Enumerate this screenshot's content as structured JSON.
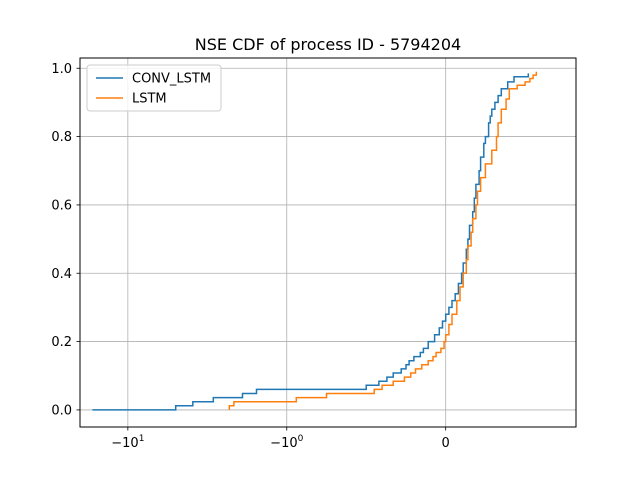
{
  "chart_data": {
    "type": "line",
    "title": "NSE CDF of process ID - 5794204",
    "xlabel": "",
    "ylabel": "",
    "x_scale": "symlog",
    "xlim": [
      -20,
      0.82
    ],
    "ylim": [
      -0.05,
      1.03
    ],
    "grid": true,
    "legend_position": "top-left",
    "x_ticks": [
      {
        "value": -10,
        "label": "-10",
        "exp": "1"
      },
      {
        "value": -1,
        "label": "-10",
        "exp": "0"
      },
      {
        "value": 0,
        "label": "0",
        "exp": ""
      }
    ],
    "y_ticks": [
      {
        "value": 0.0,
        "label": "0.0"
      },
      {
        "value": 0.2,
        "label": "0.2"
      },
      {
        "value": 0.4,
        "label": "0.4"
      },
      {
        "value": 0.6,
        "label": "0.6"
      },
      {
        "value": 0.8,
        "label": "0.8"
      },
      {
        "value": 1.0,
        "label": "1.0"
      }
    ],
    "series": [
      {
        "name": "CONV_LSTM",
        "color": "#1f77b4",
        "points": [
          [
            -16.7,
            0.0
          ],
          [
            -5.0,
            0.0
          ],
          [
            -5.0,
            0.012
          ],
          [
            -3.9,
            0.012
          ],
          [
            -3.9,
            0.024
          ],
          [
            -2.9,
            0.024
          ],
          [
            -2.9,
            0.036
          ],
          [
            -1.9,
            0.036
          ],
          [
            -1.9,
            0.048
          ],
          [
            -1.55,
            0.048
          ],
          [
            -1.55,
            0.06
          ],
          [
            -0.5,
            0.06
          ],
          [
            -0.5,
            0.072
          ],
          [
            -0.42,
            0.072
          ],
          [
            -0.42,
            0.084
          ],
          [
            -0.37,
            0.084
          ],
          [
            -0.37,
            0.096
          ],
          [
            -0.33,
            0.096
          ],
          [
            -0.33,
            0.108
          ],
          [
            -0.28,
            0.108
          ],
          [
            -0.28,
            0.12
          ],
          [
            -0.25,
            0.12
          ],
          [
            -0.25,
            0.132
          ],
          [
            -0.23,
            0.132
          ],
          [
            -0.23,
            0.144
          ],
          [
            -0.2,
            0.144
          ],
          [
            -0.2,
            0.156
          ],
          [
            -0.16,
            0.156
          ],
          [
            -0.16,
            0.168
          ],
          [
            -0.14,
            0.168
          ],
          [
            -0.14,
            0.18
          ],
          [
            -0.11,
            0.18
          ],
          [
            -0.11,
            0.2
          ],
          [
            -0.07,
            0.2
          ],
          [
            -0.07,
            0.22
          ],
          [
            -0.04,
            0.22
          ],
          [
            -0.04,
            0.24
          ],
          [
            -0.02,
            0.24
          ],
          [
            -0.02,
            0.26
          ],
          [
            0.0,
            0.26
          ],
          [
            0.0,
            0.28
          ],
          [
            0.02,
            0.28
          ],
          [
            0.02,
            0.3
          ],
          [
            0.04,
            0.3
          ],
          [
            0.04,
            0.32
          ],
          [
            0.06,
            0.32
          ],
          [
            0.06,
            0.34
          ],
          [
            0.08,
            0.34
          ],
          [
            0.08,
            0.37
          ],
          [
            0.1,
            0.37
          ],
          [
            0.1,
            0.4
          ],
          [
            0.11,
            0.4
          ],
          [
            0.11,
            0.43
          ],
          [
            0.13,
            0.43
          ],
          [
            0.13,
            0.47
          ],
          [
            0.14,
            0.47
          ],
          [
            0.14,
            0.5
          ],
          [
            0.15,
            0.5
          ],
          [
            0.15,
            0.54
          ],
          [
            0.17,
            0.54
          ],
          [
            0.17,
            0.58
          ],
          [
            0.18,
            0.58
          ],
          [
            0.18,
            0.62
          ],
          [
            0.19,
            0.62
          ],
          [
            0.19,
            0.66
          ],
          [
            0.21,
            0.66
          ],
          [
            0.21,
            0.7
          ],
          [
            0.22,
            0.7
          ],
          [
            0.22,
            0.74
          ],
          [
            0.24,
            0.74
          ],
          [
            0.24,
            0.78
          ],
          [
            0.25,
            0.78
          ],
          [
            0.25,
            0.8
          ],
          [
            0.27,
            0.8
          ],
          [
            0.27,
            0.84
          ],
          [
            0.28,
            0.84
          ],
          [
            0.28,
            0.86
          ],
          [
            0.29,
            0.86
          ],
          [
            0.29,
            0.88
          ],
          [
            0.31,
            0.88
          ],
          [
            0.31,
            0.9
          ],
          [
            0.33,
            0.9
          ],
          [
            0.33,
            0.92
          ],
          [
            0.35,
            0.92
          ],
          [
            0.35,
            0.94
          ],
          [
            0.39,
            0.94
          ],
          [
            0.39,
            0.96
          ],
          [
            0.43,
            0.96
          ],
          [
            0.43,
            0.975
          ],
          [
            0.52,
            0.975
          ],
          [
            0.52,
            0.985
          ]
        ]
      },
      {
        "name": "LSTM",
        "color": "#ff7f0e",
        "points": [
          [
            -2.3,
            0.0
          ],
          [
            -2.3,
            0.012
          ],
          [
            -2.15,
            0.012
          ],
          [
            -2.15,
            0.024
          ],
          [
            -0.94,
            0.024
          ],
          [
            -0.94,
            0.036
          ],
          [
            -0.75,
            0.036
          ],
          [
            -0.75,
            0.048
          ],
          [
            -0.45,
            0.048
          ],
          [
            -0.45,
            0.06
          ],
          [
            -0.4,
            0.06
          ],
          [
            -0.4,
            0.072
          ],
          [
            -0.33,
            0.072
          ],
          [
            -0.33,
            0.084
          ],
          [
            -0.26,
            0.084
          ],
          [
            -0.26,
            0.096
          ],
          [
            -0.22,
            0.096
          ],
          [
            -0.22,
            0.108
          ],
          [
            -0.19,
            0.108
          ],
          [
            -0.19,
            0.12
          ],
          [
            -0.15,
            0.12
          ],
          [
            -0.15,
            0.132
          ],
          [
            -0.11,
            0.132
          ],
          [
            -0.11,
            0.144
          ],
          [
            -0.08,
            0.144
          ],
          [
            -0.08,
            0.156
          ],
          [
            -0.06,
            0.156
          ],
          [
            -0.06,
            0.168
          ],
          [
            -0.03,
            0.168
          ],
          [
            -0.03,
            0.18
          ],
          [
            -0.01,
            0.18
          ],
          [
            -0.01,
            0.2
          ],
          [
            0.0,
            0.2
          ],
          [
            0.0,
            0.22
          ],
          [
            0.02,
            0.22
          ],
          [
            0.02,
            0.25
          ],
          [
            0.04,
            0.25
          ],
          [
            0.04,
            0.28
          ],
          [
            0.07,
            0.28
          ],
          [
            0.07,
            0.32
          ],
          [
            0.09,
            0.32
          ],
          [
            0.09,
            0.36
          ],
          [
            0.11,
            0.36
          ],
          [
            0.11,
            0.4
          ],
          [
            0.13,
            0.4
          ],
          [
            0.13,
            0.44
          ],
          [
            0.14,
            0.44
          ],
          [
            0.14,
            0.48
          ],
          [
            0.16,
            0.48
          ],
          [
            0.16,
            0.52
          ],
          [
            0.17,
            0.52
          ],
          [
            0.17,
            0.56
          ],
          [
            0.19,
            0.56
          ],
          [
            0.19,
            0.6
          ],
          [
            0.2,
            0.6
          ],
          [
            0.2,
            0.64
          ],
          [
            0.22,
            0.64
          ],
          [
            0.22,
            0.68
          ],
          [
            0.25,
            0.68
          ],
          [
            0.25,
            0.72
          ],
          [
            0.29,
            0.72
          ],
          [
            0.29,
            0.76
          ],
          [
            0.32,
            0.76
          ],
          [
            0.32,
            0.8
          ],
          [
            0.33,
            0.8
          ],
          [
            0.33,
            0.84
          ],
          [
            0.35,
            0.84
          ],
          [
            0.35,
            0.88
          ],
          [
            0.38,
            0.88
          ],
          [
            0.38,
            0.91
          ],
          [
            0.4,
            0.91
          ],
          [
            0.4,
            0.94
          ],
          [
            0.45,
            0.94
          ],
          [
            0.45,
            0.95
          ],
          [
            0.5,
            0.95
          ],
          [
            0.5,
            0.96
          ],
          [
            0.53,
            0.96
          ],
          [
            0.53,
            0.97
          ],
          [
            0.55,
            0.97
          ],
          [
            0.55,
            0.98
          ],
          [
            0.57,
            0.98
          ],
          [
            0.57,
            0.99
          ]
        ]
      }
    ]
  }
}
